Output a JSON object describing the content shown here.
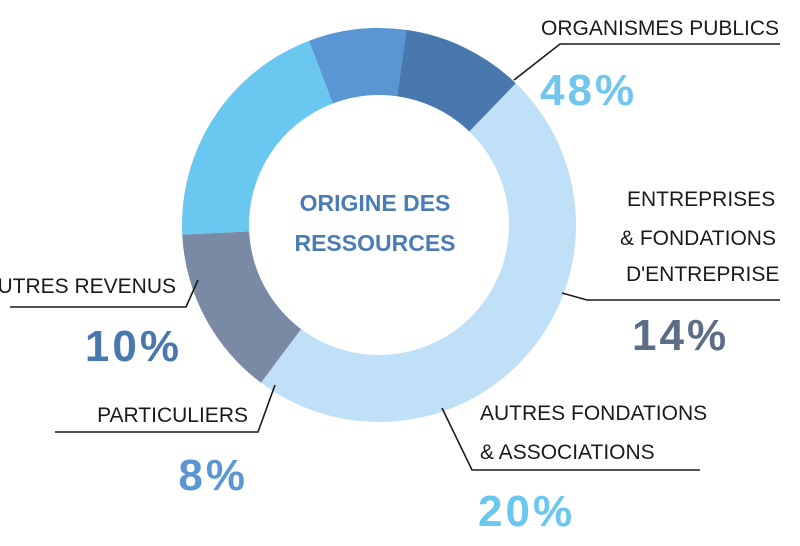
{
  "chart_data": {
    "type": "pie",
    "title": "ORIGINE DES RESSOURCES",
    "title_lines": [
      "ORIGINE DES",
      "RESSOURCES"
    ],
    "title_color": "#4a7db5",
    "slices": [
      {
        "label_lines": [
          "ORGANISMES PUBLICS"
        ],
        "value": 48,
        "value_text": "48%",
        "color": "#bfe0f6",
        "value_color": "#70c6ee"
      },
      {
        "label_lines": [
          "ENTREPRISES",
          "& FONDATIONS",
          "D'ENTREPRISE"
        ],
        "value": 14,
        "value_text": "14%",
        "color": "#7a8aa5",
        "value_color": "#5d6d86"
      },
      {
        "label_lines": [
          "AUTRES FONDATIONS",
          "& ASSOCIATIONS"
        ],
        "value": 20,
        "value_text": "20%",
        "color": "#6ac7f0",
        "value_color": "#6ac7f0"
      },
      {
        "label_lines": [
          "PARTICULIERS"
        ],
        "value": 8,
        "value_text": "8%",
        "color": "#5a96d3",
        "value_color": "#5a96d3"
      },
      {
        "label_lines": [
          "AUTRES REVENUS"
        ],
        "value": 10,
        "value_text": "10%",
        "color": "#4878ad",
        "value_color": "#4878ad"
      }
    ]
  }
}
